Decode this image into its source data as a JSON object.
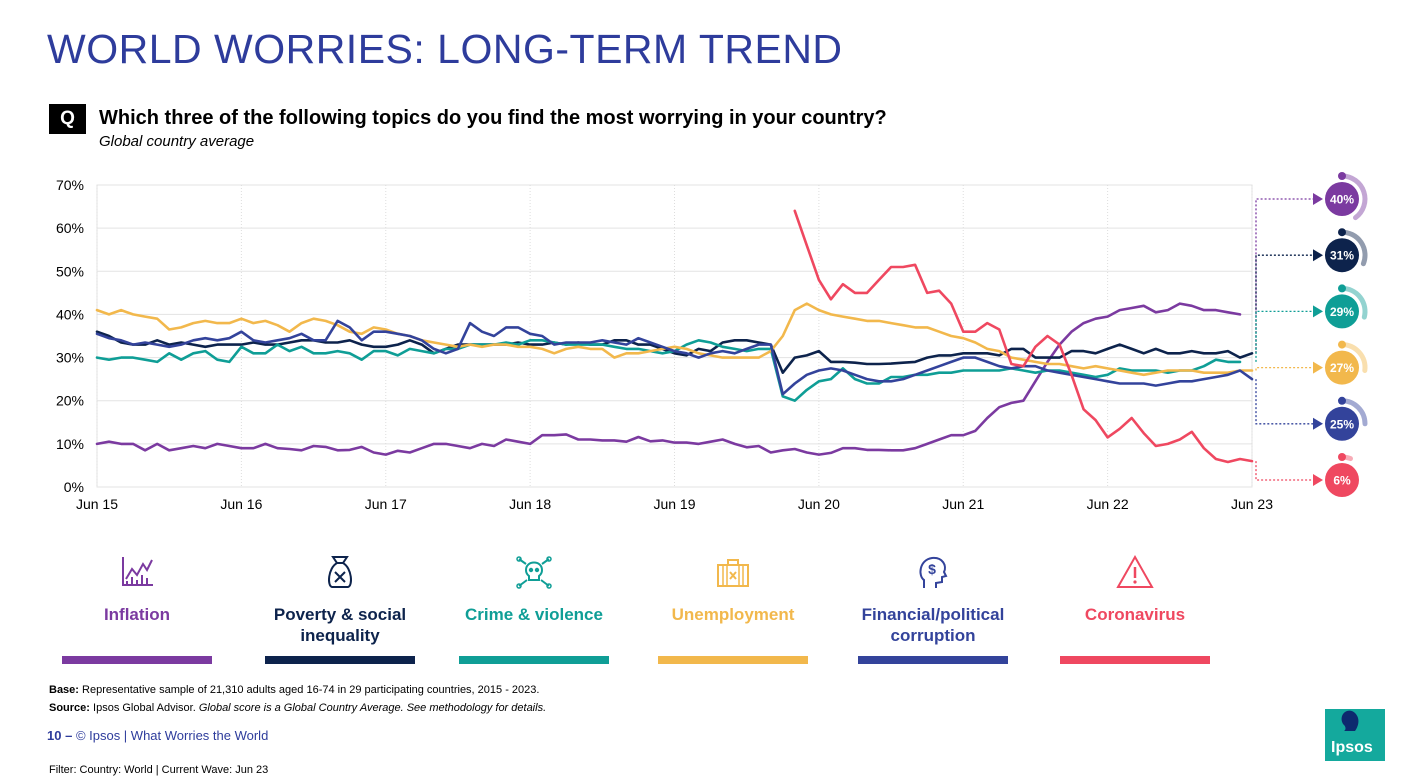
{
  "header": {
    "title": "WORLD WORRIES: LONG-TERM TREND",
    "q_label": "Q",
    "question": "Which three of the following topics do you find the most worrying in your country?",
    "subtitle": "Global country average"
  },
  "chart_data": {
    "type": "line",
    "x_labels": [
      "Jun 15",
      "Jun 16",
      "Jun 17",
      "Jun 18",
      "Jun 19",
      "Jun 20",
      "Jun 21",
      "Jun 22",
      "Jun 23"
    ],
    "y_ticks": [
      "0%",
      "10%",
      "20%",
      "30%",
      "40%",
      "50%",
      "60%",
      "70%"
    ],
    "ylim": [
      0,
      70
    ],
    "grid": true,
    "months_per_label": 12,
    "series": [
      {
        "name": "Inflation",
        "color": "#7b3aa0",
        "final_label": "40%",
        "final": 40,
        "values": [
          10,
          10.5,
          10,
          10,
          8.5,
          10,
          8.5,
          9,
          9.5,
          9,
          10,
          9.5,
          9,
          9,
          10,
          9,
          8.8,
          8.5,
          9.5,
          9.3,
          8.5,
          8.6,
          9.3,
          8,
          7.5,
          8.4,
          8,
          9,
          10,
          10,
          9.5,
          9,
          10,
          9.5,
          11,
          10.5,
          10,
          12,
          12,
          12.2,
          11,
          11,
          10.8,
          10.8,
          10.5,
          11.6,
          10.6,
          10.8,
          10.3,
          10.3,
          10,
          10.5,
          11,
          10,
          9.2,
          9.5,
          8,
          8.5,
          8.8,
          8,
          7.5,
          7.9,
          9,
          9,
          8.6,
          8.6,
          8.5,
          8.5,
          9,
          10,
          11,
          12,
          12,
          13,
          16,
          18.5,
          19.5,
          20,
          24.5,
          29,
          33,
          36,
          38,
          39,
          39.5,
          41,
          41.5,
          42,
          40.5,
          41,
          42.5,
          42,
          41,
          41,
          40.5,
          40
        ]
      },
      {
        "name": "Poverty & social inequality",
        "color": "#0d234c",
        "final_label": "31%",
        "final": 31,
        "values": [
          36,
          35,
          33.5,
          33,
          33,
          34,
          33,
          33.5,
          33,
          32.5,
          33,
          33,
          33,
          33.5,
          33,
          33,
          33.5,
          34,
          34,
          33.5,
          33.5,
          34,
          33,
          32.5,
          32.5,
          33,
          34,
          33,
          31,
          32,
          33,
          33,
          33,
          33,
          33,
          33.5,
          33,
          33,
          33.5,
          33,
          33.5,
          33,
          33,
          34,
          34,
          33,
          33,
          32,
          31,
          30.5,
          32,
          31.5,
          33.5,
          34,
          34,
          33.5,
          33,
          26.5,
          30,
          30.5,
          31.5,
          29,
          29,
          28.8,
          28.5,
          28.5,
          28.6,
          28.8,
          29,
          30,
          30.5,
          30.5,
          31,
          31,
          31,
          30.5,
          32,
          32,
          30,
          30,
          30,
          31.5,
          31.5,
          31,
          32,
          33,
          32,
          31,
          32,
          31,
          31,
          31.5,
          31,
          31,
          31.5,
          30,
          31
        ]
      },
      {
        "name": "Crime & violence",
        "color": "#0f9e96",
        "final_label": "29%",
        "final": 29,
        "values": [
          30,
          29.5,
          30,
          30,
          29.5,
          29,
          31,
          29.5,
          31,
          31.5,
          29.5,
          29,
          32.5,
          31,
          31,
          33,
          31.5,
          32.5,
          31,
          31,
          31.5,
          31,
          29.5,
          31.5,
          31.5,
          30.5,
          32,
          31.5,
          31,
          32,
          32,
          33,
          33,
          33,
          33.5,
          33,
          34,
          34,
          33.5,
          33,
          33,
          33,
          33,
          32.5,
          32,
          32,
          31.5,
          31,
          31.5,
          33,
          34,
          33.5,
          32.5,
          32,
          31.5,
          32,
          32,
          21,
          20,
          22.5,
          24.5,
          25,
          27.5,
          25,
          24,
          24,
          25.5,
          25.5,
          26,
          26,
          26.5,
          26.5,
          27,
          27,
          27,
          27,
          27.5,
          27,
          26.5,
          27,
          27,
          26.5,
          26,
          25.5,
          26,
          27.5,
          27,
          27,
          27,
          26.5,
          27,
          27,
          28,
          29.5,
          29,
          29
        ]
      },
      {
        "name": "Unemployment",
        "color": "#f2b84c",
        "final_label": "27%",
        "final": 27,
        "values": [
          41,
          40,
          41,
          40,
          39.5,
          39,
          36.5,
          37,
          38,
          38.5,
          38,
          38,
          39,
          38,
          38.5,
          37.5,
          36,
          38,
          39,
          38.5,
          37.5,
          36,
          35.5,
          37,
          36.5,
          35.5,
          35,
          34,
          33.5,
          33,
          32.5,
          33,
          32.5,
          33,
          33,
          32.5,
          32.5,
          32,
          31,
          32,
          32.5,
          32,
          32,
          30,
          31,
          31,
          31.5,
          32,
          32.5,
          32,
          31,
          30.5,
          30,
          30,
          30,
          30,
          31.5,
          35,
          41,
          42.5,
          41,
          40,
          39.5,
          39,
          38.5,
          38.5,
          38,
          37.5,
          37,
          37,
          36,
          35,
          34.5,
          33.5,
          32,
          31.5,
          30,
          29.5,
          29,
          28.5,
          28.5,
          28,
          27.5,
          28,
          27.5,
          27,
          26.5,
          26,
          26.5,
          27,
          27,
          27,
          26.5,
          26.5,
          26.5,
          27,
          27
        ]
      },
      {
        "name": "Financial/political corruption",
        "color": "#33439b",
        "final_label": "25%",
        "final": 25,
        "values": [
          35.5,
          34.5,
          34,
          33,
          33.5,
          33,
          32.5,
          33,
          34,
          34.5,
          34,
          34.5,
          36,
          34,
          33.5,
          34,
          34.5,
          35.5,
          34,
          34,
          38.5,
          37,
          34,
          36,
          36,
          35.5,
          35,
          34,
          32,
          31,
          32,
          38,
          36,
          35,
          37,
          37,
          35.5,
          35,
          33,
          33.5,
          33.5,
          33.5,
          34,
          33.5,
          33,
          34.5,
          33.5,
          32.5,
          31.5,
          31,
          30,
          31,
          31.5,
          31,
          32,
          33,
          33,
          21.5,
          24,
          26,
          27,
          27.5,
          27,
          26,
          25,
          24.5,
          24.5,
          25,
          26,
          27,
          28,
          29,
          30,
          30,
          29,
          28,
          27.5,
          28,
          28,
          27,
          26.5,
          26,
          25.5,
          25,
          24.5,
          24,
          24,
          24,
          23.5,
          24,
          24.5,
          24.5,
          25,
          25.5,
          26,
          27,
          25
        ]
      },
      {
        "name": "Coronavirus",
        "color": "#ef4860",
        "final_label": "6%",
        "final": 6,
        "start_index": 58,
        "values": [
          64,
          56,
          48,
          43.5,
          47,
          45,
          45,
          48,
          51,
          51,
          51.5,
          45,
          45.5,
          42.5,
          36,
          36,
          38,
          36.5,
          28.5,
          28,
          32.5,
          35,
          33,
          26,
          18,
          15.5,
          11.5,
          13.5,
          16,
          12.5,
          9.5,
          10,
          11,
          12.8,
          9,
          6.5,
          5.8,
          6.5,
          6
        ]
      }
    ]
  },
  "legend": [
    {
      "label": "Inflation",
      "icon": "chart-trend-icon",
      "color": "#7b3aa0"
    },
    {
      "label": "Poverty & social inequality",
      "icon": "money-bag-icon",
      "color": "#0d234c"
    },
    {
      "label": "Crime & violence",
      "icon": "skull-icon",
      "color": "#0f9e96"
    },
    {
      "label": "Unemployment",
      "icon": "briefcase-icon",
      "color": "#f2b84c"
    },
    {
      "label": "Financial/political corruption",
      "icon": "head-dollar-icon",
      "color": "#33439b"
    },
    {
      "label": "Coronavirus",
      "icon": "warning-icon",
      "color": "#ef4860"
    }
  ],
  "footer": {
    "base_label": "Base:",
    "base_text": "Representative sample of 21,310 adults aged 16-74 in 29 participating countries, 2015 - 2023.",
    "source_label": "Source:",
    "source_text": "Ipsos Global Advisor.",
    "source_note": "Global score is a Global Country Average. See methodology for details.",
    "page_number": "10 –",
    "page_text": "© Ipsos | What Worries the World",
    "filter": "Filter: Country: World | Current Wave: Jun 23",
    "logo": "Ipsos"
  }
}
